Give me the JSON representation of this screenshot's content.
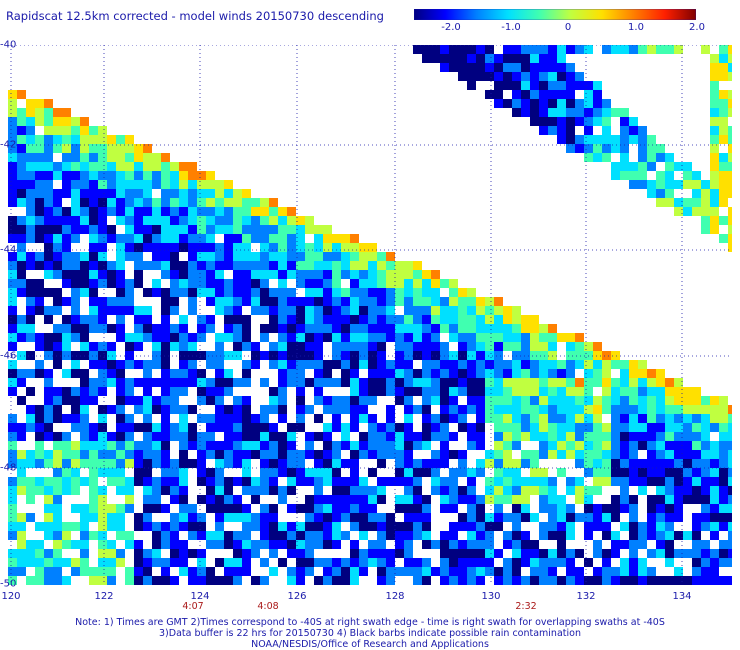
{
  "title": "Rapidscat 12.5km corrected - model winds 20150730 descending",
  "colorbar": {
    "labels": [
      "-2.0",
      "-1.0",
      "0",
      "1.0",
      "2.0"
    ],
    "stops": [
      "#000080",
      "#0000ff",
      "#0080ff",
      "#00e0ff",
      "#40ffb0",
      "#c0ff40",
      "#ffe000",
      "#ff8000",
      "#ff2000",
      "#800000"
    ]
  },
  "map": {
    "lat_labels": [
      "-40",
      "-42",
      "-44",
      "-46",
      "-48",
      "-50"
    ],
    "lon_labels": [
      "120",
      "122",
      "124",
      "126",
      "128",
      "130",
      "132",
      "134"
    ],
    "swath_times": [
      "4:07",
      "4:08",
      "2:32"
    ]
  },
  "notes": [
    "Note: 1) Times are GMT 2)Times correspond to -40S at right swath edge - time is right swath for overlapping swaths at -40S",
    "3)Data buffer is 22 hrs for 20150730 4) Black barbs indicate possible rain contamination",
    "NOAA/NESDIS/Office of Research and Applications"
  ]
}
